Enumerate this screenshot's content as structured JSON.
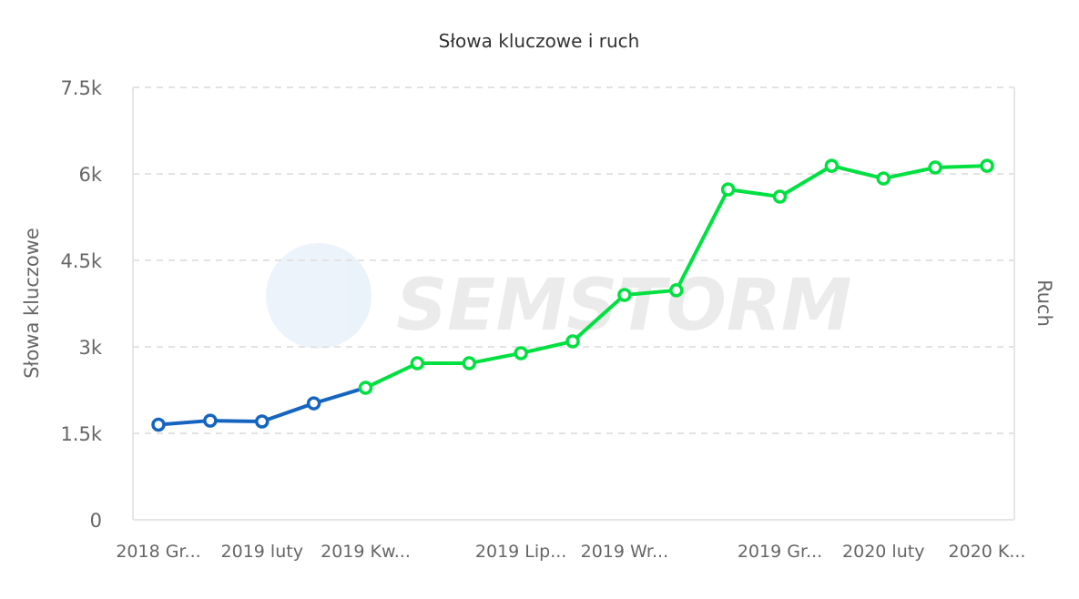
{
  "chart_data": {
    "type": "line",
    "title": "Słowa kluczowe i ruch",
    "ylabel": "Słowa kluczowe",
    "ylabel_right": "Ruch",
    "xlabel": "",
    "ylim": [
      0,
      7500
    ],
    "y_ticks": [
      0,
      1500,
      3000,
      4500,
      6000,
      7500
    ],
    "y_tick_labels": [
      "0",
      "1.5k",
      "3k",
      "4.5k",
      "6k",
      "7.5k"
    ],
    "x_tick_labels": [
      {
        "index": 0,
        "label": "2018 Gr..."
      },
      {
        "index": 2,
        "label": "2019 luty"
      },
      {
        "index": 4,
        "label": "2019 Kw..."
      },
      {
        "index": 7,
        "label": "2019 Lip..."
      },
      {
        "index": 9,
        "label": "2019 Wr..."
      },
      {
        "index": 12,
        "label": "2019 Gr..."
      },
      {
        "index": 14,
        "label": "2020 luty"
      },
      {
        "index": 16,
        "label": "2020 K..."
      }
    ],
    "grid": "horizontal dashed",
    "series": [
      {
        "color": "#1565c0",
        "values": [
          1650,
          1720,
          1705,
          2020,
          2290,
          null,
          null,
          null,
          null,
          null,
          null,
          null,
          null,
          null,
          null,
          null,
          null
        ]
      },
      {
        "color": "#00e040",
        "values": [
          null,
          null,
          null,
          null,
          2290,
          2715,
          2715,
          2890,
          3095,
          3900,
          3980,
          5730,
          5605,
          6140,
          5920,
          6110,
          6140
        ]
      }
    ],
    "watermark": "SEMSTORM"
  }
}
